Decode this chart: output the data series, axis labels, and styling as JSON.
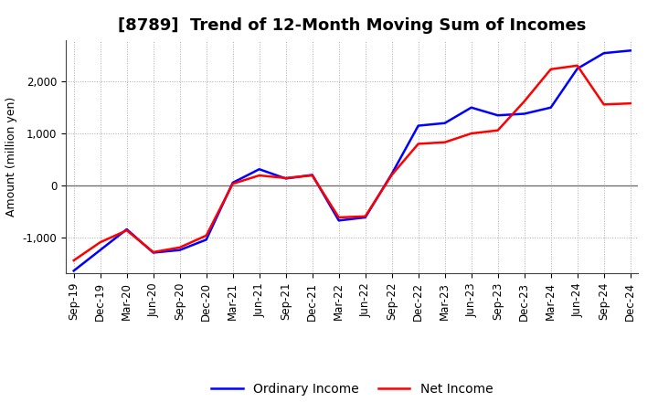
{
  "title": "[8789]  Trend of 12-Month Moving Sum of Incomes",
  "ylabel": "Amount (million yen)",
  "labels": [
    "Sep-19",
    "Dec-19",
    "Mar-20",
    "Jun-20",
    "Sep-20",
    "Dec-20",
    "Mar-21",
    "Jun-21",
    "Sep-21",
    "Dec-21",
    "Mar-22",
    "Jun-22",
    "Sep-22",
    "Dec-22",
    "Mar-23",
    "Jun-23",
    "Sep-23",
    "Dec-23",
    "Mar-24",
    "Jun-24",
    "Sep-24",
    "Dec-24"
  ],
  "ordinary_income": [
    -1650,
    -1250,
    -850,
    -1300,
    -1250,
    -1050,
    50,
    310,
    130,
    200,
    -680,
    -620,
    220,
    1150,
    1200,
    1500,
    1350,
    1380,
    1500,
    2250,
    2550,
    2600
  ],
  "net_income": [
    -1450,
    -1100,
    -870,
    -1290,
    -1200,
    -970,
    30,
    190,
    140,
    190,
    -620,
    -600,
    200,
    800,
    830,
    1000,
    1060,
    1620,
    2240,
    2310,
    1560,
    1580
  ],
  "ordinary_color": "#0000FF",
  "net_color": "#FF0000",
  "line_width": 1.8,
  "background_color": "#FFFFFF",
  "grid_color": "#AAAAAA",
  "ylim": [
    -1700,
    2800
  ],
  "yticks": [
    -1000,
    0,
    1000,
    2000
  ],
  "title_fontsize": 13,
  "ylabel_fontsize": 9,
  "tick_fontsize": 8.5,
  "legend_fontsize": 10
}
